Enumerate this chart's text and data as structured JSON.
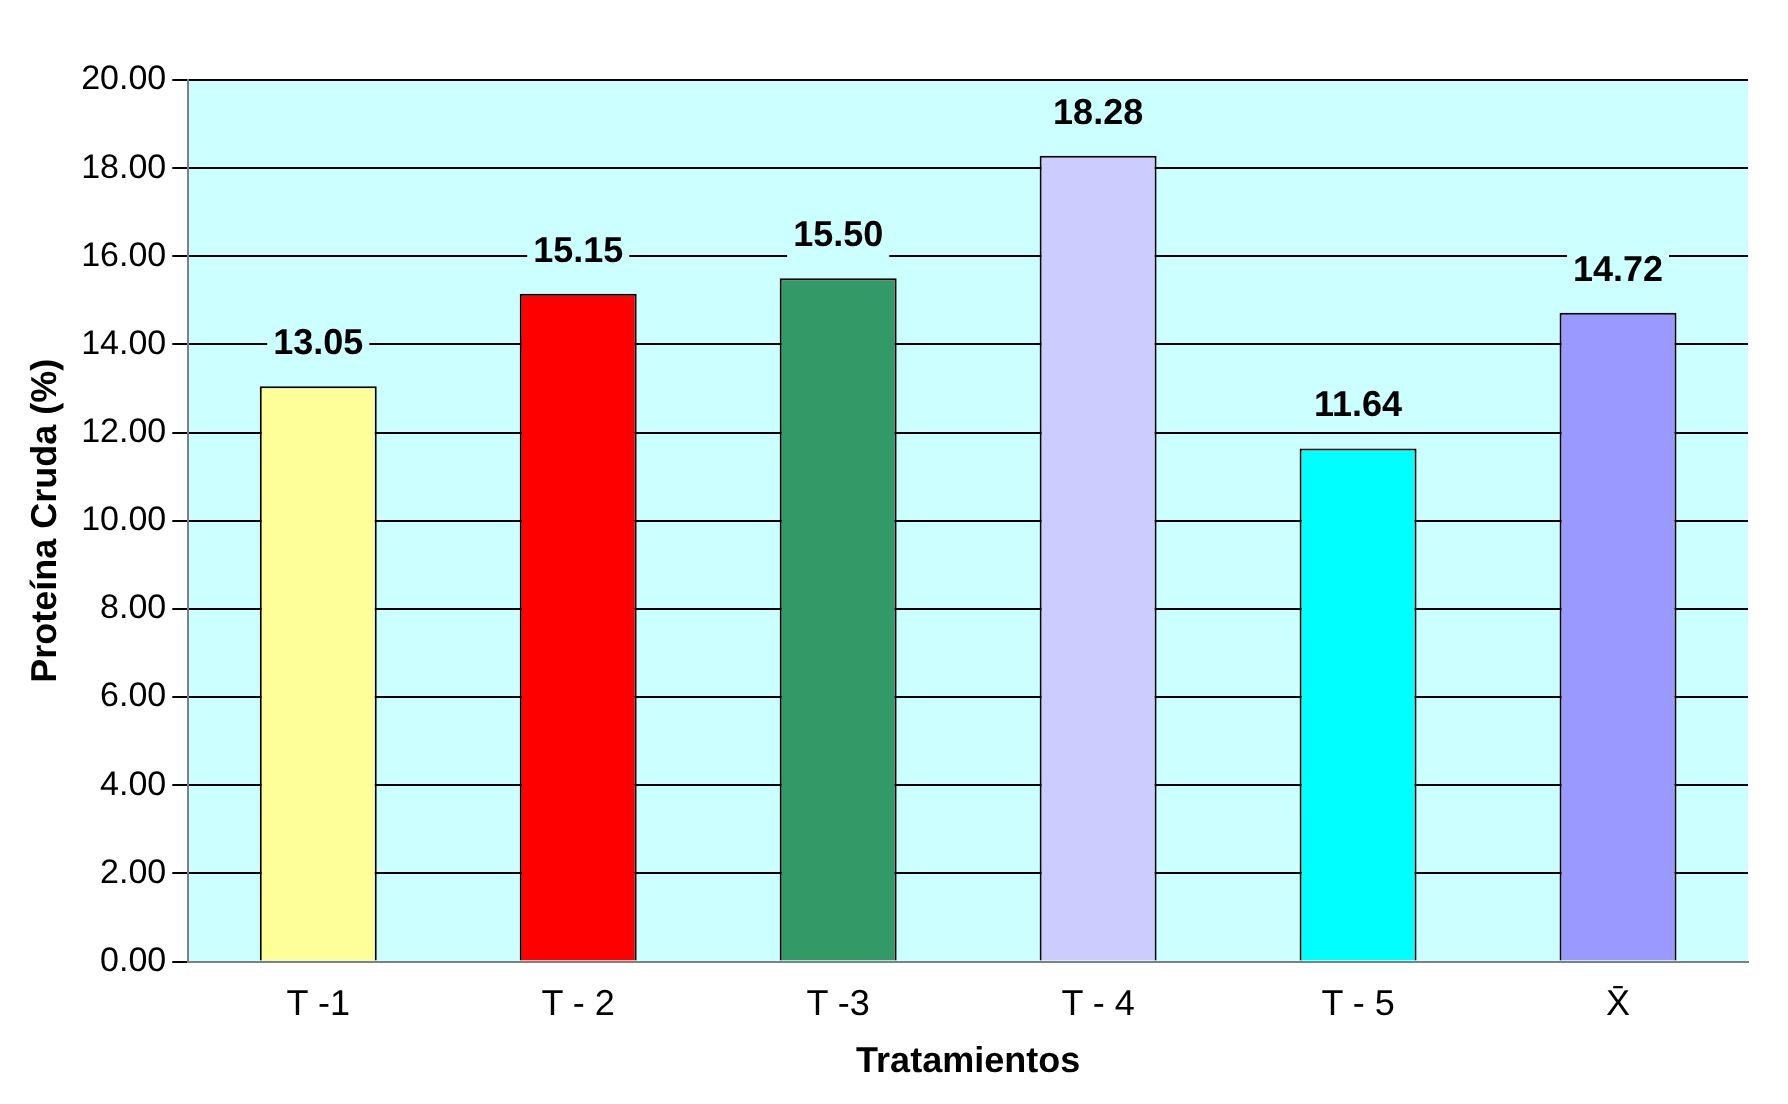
{
  "chart_data": {
    "type": "bar",
    "xlabel": "Tratamientos",
    "ylabel": "Proteína Cruda (%)",
    "categories": [
      "T -1",
      "T - 2",
      "T -3",
      "T - 4",
      "T - 5",
      "X̄"
    ],
    "values": [
      13.05,
      15.15,
      15.5,
      18.28,
      11.64,
      14.72
    ],
    "colors": [
      "#ffff99",
      "#ff0000",
      "#339966",
      "#ccccff",
      "#00ffff",
      "#9999ff"
    ],
    "ylim": [
      0,
      20
    ],
    "yticks": [
      {
        "value": 0,
        "label": "0.00"
      },
      {
        "value": 2,
        "label": "2.00"
      },
      {
        "value": 4,
        "label": "4.00"
      },
      {
        "value": 6,
        "label": "6.00"
      },
      {
        "value": 8,
        "label": "8.00"
      },
      {
        "value": 10,
        "label": "10.00"
      },
      {
        "value": 12,
        "label": "12.00"
      },
      {
        "value": 14,
        "label": "14.00"
      },
      {
        "value": 16,
        "label": "16.00"
      },
      {
        "value": 18,
        "label": "18.00"
      },
      {
        "value": 20,
        "label": "20.00"
      }
    ],
    "value_labels": [
      "13.05",
      "15.15",
      "15.50",
      "18.28",
      "11.64",
      "14.72"
    ],
    "grid": "y",
    "legend": false
  }
}
